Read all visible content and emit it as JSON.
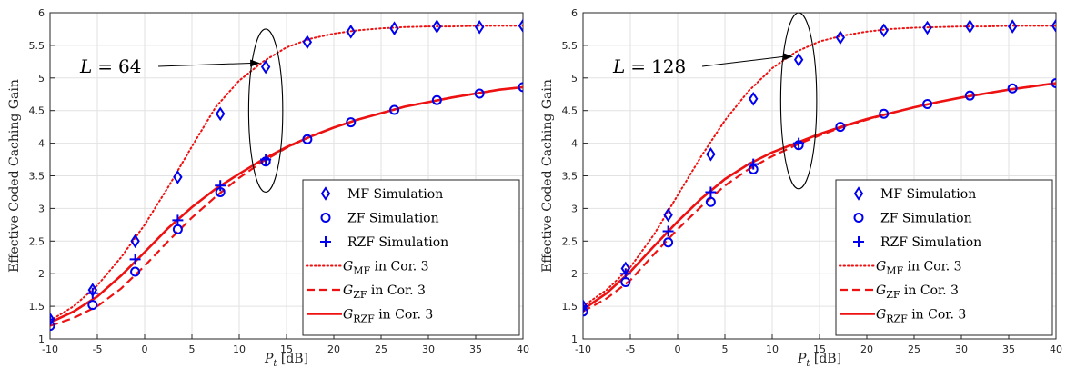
{
  "chart_data": [
    {
      "type": "line",
      "xlabel": "P_t [dB]",
      "ylabel": "Effective Coded Caching Gain",
      "xlim": [
        -10,
        40
      ],
      "ylim": [
        1,
        6
      ],
      "xticks": [
        -10,
        -5,
        0,
        5,
        10,
        15,
        20,
        25,
        30,
        35,
        40
      ],
      "yticks": [
        1,
        1.5,
        2,
        2.5,
        3,
        3.5,
        4,
        4.5,
        5,
        5.5,
        6
      ],
      "grid": true,
      "legend_position": "bottom-right",
      "annotation": {
        "var": "L",
        "eq": "=",
        "value": "64",
        "x": 12.8,
        "y": 5.2
      },
      "ellipse": {
        "cx": 12.8,
        "cy": 4.5,
        "rx": 1.8,
        "ry": 1.25
      },
      "series": [
        {
          "name": "MF Simulation",
          "style": "diamond",
          "x": [
            -10,
            -5.5,
            -1,
            3.5,
            8,
            12.8,
            17.2,
            21.8,
            26.4,
            30.9,
            35.4,
            40
          ],
          "y": [
            1.3,
            1.75,
            2.5,
            3.48,
            4.45,
            5.17,
            5.55,
            5.71,
            5.76,
            5.79,
            5.78,
            5.8
          ]
        },
        {
          "name": "ZF Simulation",
          "style": "circle",
          "x": [
            -10,
            -5.5,
            -1,
            3.5,
            8,
            12.8,
            17.2,
            21.8,
            26.4,
            30.9,
            35.4,
            40
          ],
          "y": [
            1.2,
            1.52,
            2.03,
            2.68,
            3.25,
            3.72,
            4.06,
            4.32,
            4.51,
            4.66,
            4.76,
            4.86
          ]
        },
        {
          "name": "RZF Simulation",
          "style": "plus",
          "x": [
            -10,
            -5.5,
            -1,
            3.5,
            8,
            12.8
          ],
          "y": [
            1.3,
            1.7,
            2.22,
            2.82,
            3.35,
            3.75
          ]
        },
        {
          "name": "G_MF in Cor. 3",
          "sub": "MF",
          "style": "dotted",
          "x": [
            -10,
            -7.5,
            -5,
            -2.5,
            0,
            2.5,
            5,
            7.5,
            10,
            12.5,
            15,
            17.5,
            20,
            22.5,
            25,
            27.5,
            30,
            32.5,
            35,
            37.5,
            40
          ],
          "y": [
            1.28,
            1.5,
            1.82,
            2.25,
            2.75,
            3.33,
            3.95,
            4.55,
            4.96,
            5.25,
            5.47,
            5.6,
            5.68,
            5.73,
            5.76,
            5.78,
            5.79,
            5.79,
            5.8,
            5.8,
            5.8
          ]
        },
        {
          "name": "G_ZF in Cor. 3",
          "sub": "ZF",
          "style": "dashed",
          "x": [
            -10,
            -7.5,
            -5,
            -2.5,
            0,
            2.5,
            5,
            7.5,
            10,
            12.5,
            15,
            17.5,
            20,
            22.5,
            25,
            27.5,
            30,
            32.5,
            35,
            37.5,
            40
          ],
          "y": [
            1.2,
            1.32,
            1.5,
            1.77,
            2.12,
            2.5,
            2.86,
            3.18,
            3.47,
            3.72,
            3.93,
            4.1,
            4.24,
            4.36,
            4.46,
            4.56,
            4.63,
            4.7,
            4.76,
            4.82,
            4.86
          ]
        },
        {
          "name": "G_RZF in Cor. 3",
          "sub": "RZF",
          "style": "solid",
          "x": [
            -10,
            -7.5,
            -5,
            -2.5,
            0,
            2.5,
            5,
            7.5,
            10,
            12.5,
            15,
            17.5,
            20,
            22.5,
            25,
            27.5,
            30,
            32.5,
            35,
            37.5,
            40
          ],
          "y": [
            1.25,
            1.42,
            1.65,
            1.97,
            2.33,
            2.7,
            3.02,
            3.3,
            3.53,
            3.75,
            3.94,
            4.1,
            4.24,
            4.36,
            4.46,
            4.56,
            4.63,
            4.7,
            4.76,
            4.82,
            4.86
          ]
        }
      ]
    },
    {
      "type": "line",
      "xlabel": "P_t [dB]",
      "ylabel": "Effective Coded Caching Gain",
      "xlim": [
        -10,
        40
      ],
      "ylim": [
        1,
        6
      ],
      "xticks": [
        -10,
        -5,
        0,
        5,
        10,
        15,
        20,
        25,
        30,
        35,
        40
      ],
      "yticks": [
        1,
        1.5,
        2,
        2.5,
        3,
        3.5,
        4,
        4.5,
        5,
        5.5,
        6
      ],
      "grid": true,
      "legend_position": "bottom-right",
      "annotation": {
        "var": "L",
        "eq": "=",
        "value": "128",
        "x": 12.8,
        "y": 5.3
      },
      "ellipse": {
        "cx": 12.8,
        "cy": 4.65,
        "rx": 1.9,
        "ry": 1.35
      },
      "series": [
        {
          "name": "MF Simulation",
          "style": "diamond",
          "x": [
            -10,
            -5.5,
            -1,
            3.5,
            8,
            12.8,
            17.2,
            21.8,
            26.4,
            30.9,
            35.4,
            40
          ],
          "y": [
            1.5,
            2.08,
            2.9,
            3.83,
            4.68,
            5.28,
            5.62,
            5.73,
            5.77,
            5.79,
            5.79,
            5.8
          ]
        },
        {
          "name": "ZF Simulation",
          "style": "circle",
          "x": [
            -10,
            -5.5,
            -1,
            3.5,
            8,
            12.8,
            17.2,
            21.8,
            26.4,
            30.9,
            35.4,
            40
          ],
          "y": [
            1.42,
            1.87,
            2.48,
            3.1,
            3.6,
            3.97,
            4.25,
            4.45,
            4.6,
            4.73,
            4.84,
            4.92
          ]
        },
        {
          "name": "RZF Simulation",
          "style": "plus",
          "x": [
            -10,
            -5.5,
            -1,
            3.5,
            8,
            12.8
          ],
          "y": [
            1.5,
            2.0,
            2.65,
            3.25,
            3.68,
            4.0
          ]
        },
        {
          "name": "G_MF in Cor. 3",
          "sub": "MF",
          "style": "dotted",
          "x": [
            -10,
            -7.5,
            -5,
            -2.5,
            0,
            2.5,
            5,
            7.5,
            10,
            12.5,
            15,
            17.5,
            20,
            22.5,
            25,
            27.5,
            30,
            32.5,
            35,
            37.5,
            40
          ],
          "y": [
            1.5,
            1.75,
            2.1,
            2.6,
            3.2,
            3.8,
            4.35,
            4.8,
            5.15,
            5.4,
            5.56,
            5.65,
            5.71,
            5.75,
            5.77,
            5.78,
            5.79,
            5.79,
            5.8,
            5.8,
            5.8
          ]
        },
        {
          "name": "G_ZF in Cor. 3",
          "sub": "ZF",
          "style": "dashed",
          "x": [
            -10,
            -7.5,
            -5,
            -2.5,
            0,
            2.5,
            5,
            7.5,
            10,
            12.5,
            15,
            17.5,
            20,
            22.5,
            25,
            27.5,
            30,
            32.5,
            35,
            37.5,
            40
          ],
          "y": [
            1.42,
            1.62,
            1.9,
            2.3,
            2.68,
            3.03,
            3.35,
            3.6,
            3.8,
            3.97,
            4.12,
            4.25,
            4.36,
            4.46,
            4.55,
            4.63,
            4.7,
            4.76,
            4.82,
            4.87,
            4.92
          ]
        },
        {
          "name": "G_RZF in Cor. 3",
          "sub": "RZF",
          "style": "solid",
          "x": [
            -10,
            -7.5,
            -5,
            -2.5,
            0,
            2.5,
            5,
            7.5,
            10,
            12.5,
            15,
            17.5,
            20,
            22.5,
            25,
            27.5,
            30,
            32.5,
            35,
            37.5,
            40
          ],
          "y": [
            1.45,
            1.7,
            2.03,
            2.42,
            2.8,
            3.15,
            3.45,
            3.68,
            3.86,
            4.0,
            4.14,
            4.26,
            4.37,
            4.46,
            4.55,
            4.63,
            4.7,
            4.76,
            4.82,
            4.87,
            4.92
          ]
        }
      ]
    }
  ]
}
